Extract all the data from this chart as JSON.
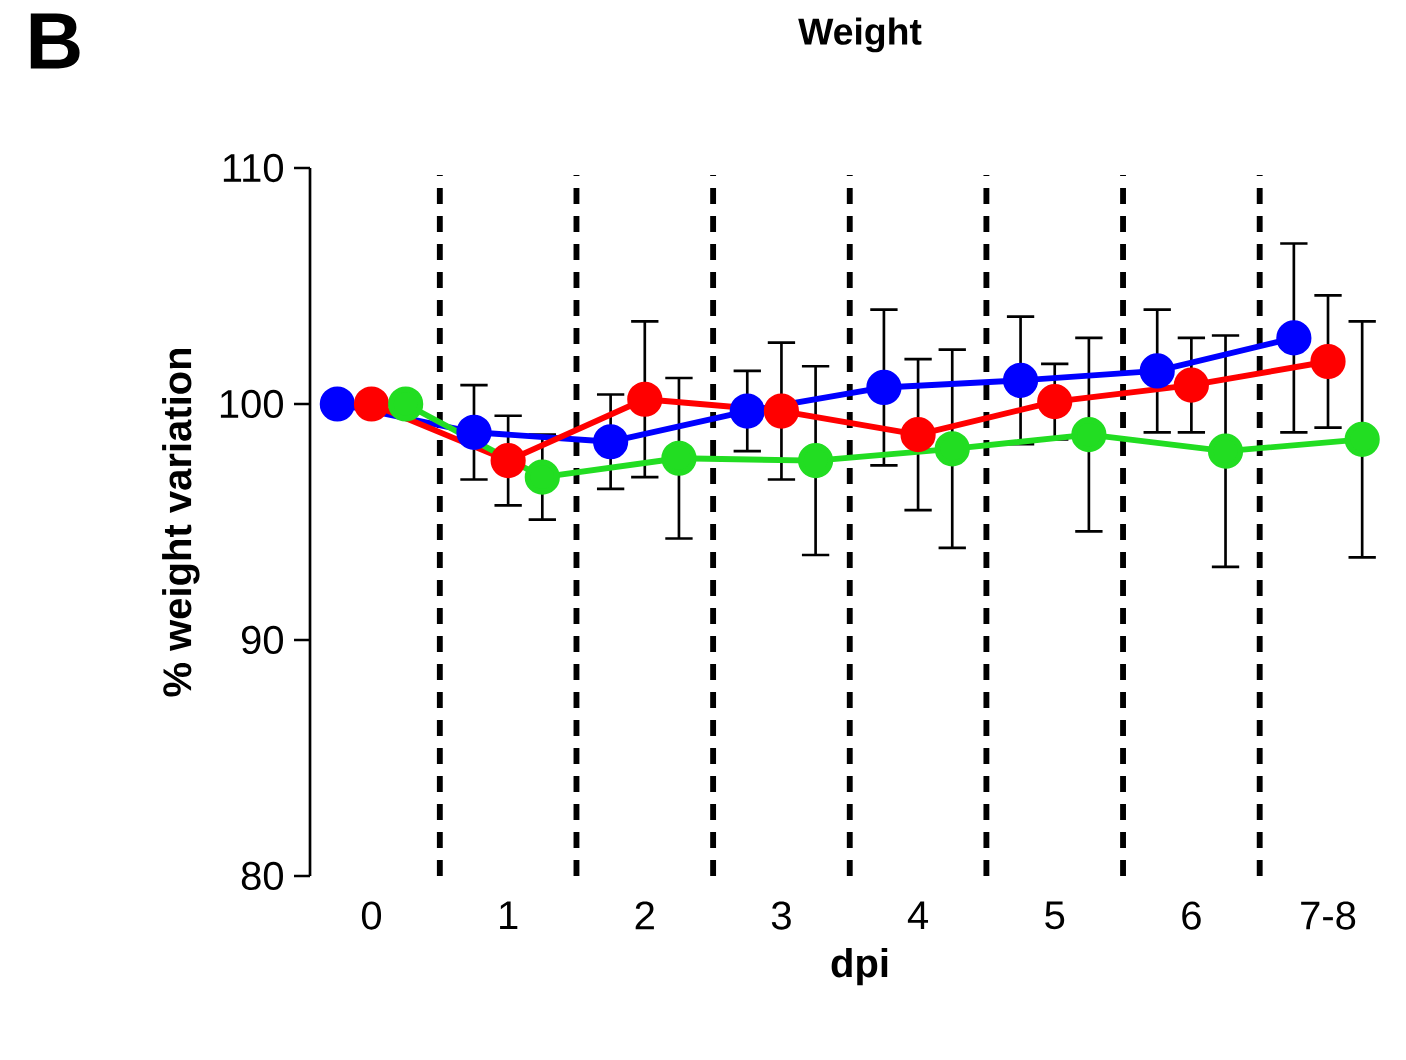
{
  "chart_data": {
    "type": "line",
    "title": "Weight",
    "xlabel": "dpi",
    "ylabel": "% weight variation",
    "annotations": [
      "B"
    ],
    "categories": [
      "0",
      "1",
      "2",
      "3",
      "4",
      "5",
      "6",
      "7-8"
    ],
    "ylim": [
      80,
      110
    ],
    "yticks": [
      80,
      90,
      100,
      110
    ],
    "grid": false,
    "marker": "circle",
    "line_style": "solid",
    "series": [
      {
        "color": "#0000ff",
        "values": [
          100,
          98.8,
          98.4,
          99.7,
          100.7,
          101.0,
          101.4,
          102.8
        ],
        "errors": [
          null,
          2.0,
          2.0,
          1.7,
          3.3,
          2.7,
          2.6,
          4.0
        ]
      },
      {
        "color": "#ff0000",
        "values": [
          100,
          97.6,
          100.2,
          99.7,
          98.7,
          100.1,
          100.8,
          101.8
        ],
        "errors": [
          null,
          1.9,
          3.3,
          2.9,
          3.2,
          1.6,
          2.0,
          2.8
        ]
      },
      {
        "color": "#22dd22",
        "values": [
          100,
          96.9,
          97.7,
          97.6,
          98.1,
          98.7,
          98.0,
          98.5
        ],
        "errors": [
          null,
          1.8,
          3.4,
          4.0,
          4.2,
          4.1,
          4.9,
          5.0
        ]
      }
    ]
  }
}
